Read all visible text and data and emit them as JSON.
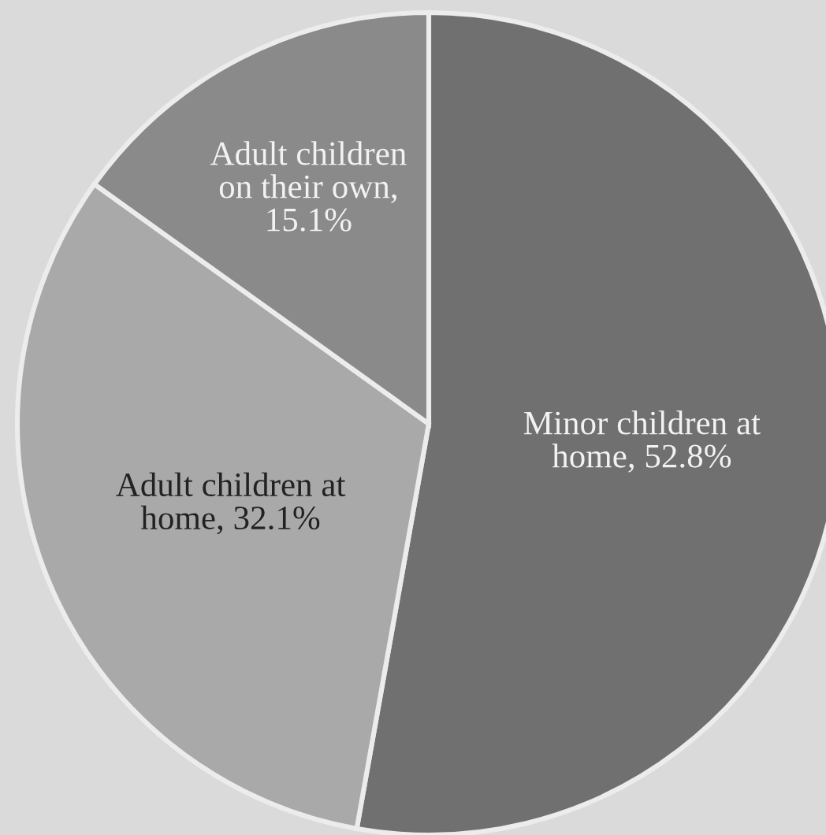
{
  "chart_data": {
    "type": "pie",
    "categories": [
      "Minor children at home, 52.8%",
      "Adult children at home, 32.1%",
      "Adult children on their own, 15.1%"
    ],
    "values": [
      52.8,
      32.1,
      15.1
    ],
    "colors": [
      "#707070",
      "#a9a9a9",
      "#8a8a8a"
    ]
  }
}
